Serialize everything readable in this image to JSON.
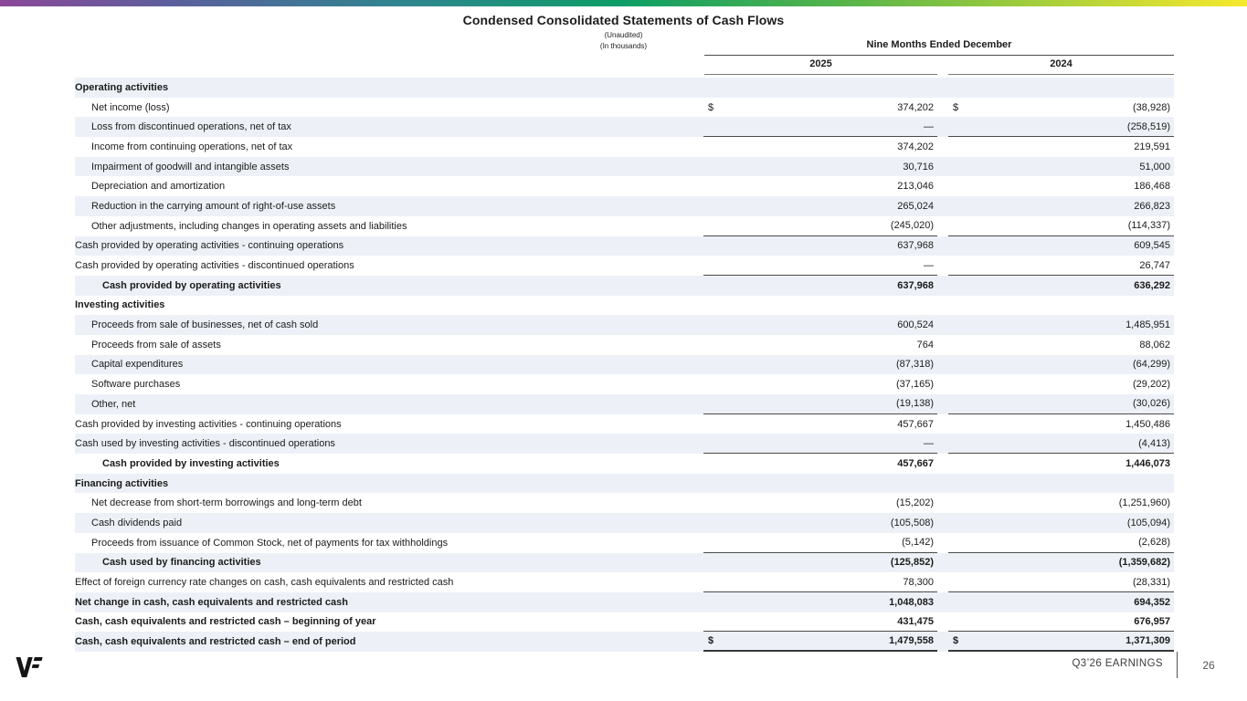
{
  "slide": {
    "title": "Condensed Consolidated Statements of Cash Flows",
    "subtitle_unaudited": "(Unaudited)",
    "subtitle_units": "(In thousands)",
    "period_header": "Nine Months Ended December",
    "columns": [
      "2025",
      "2024"
    ]
  },
  "footer": {
    "brand": "VF",
    "label": "Q3’26 EARNINGS",
    "page": "26"
  },
  "colors": {
    "row_shade": "#edf1f7",
    "rule_line": "#4b4b4b",
    "gradient_start": "#8c4799",
    "gradient_mid": "#0d9e66",
    "gradient_end": "#f7e92c"
  },
  "table": {
    "rows": [
      {
        "label": "Operating activities",
        "indent": 0,
        "bold": true,
        "dollar": false,
        "v2025": "",
        "v2024": "",
        "rule_below": false,
        "final": false
      },
      {
        "label": "Net income (loss)",
        "indent": 1,
        "bold": false,
        "dollar": true,
        "v2025": "374,202",
        "v2024": "(38,928)",
        "rule_below": false,
        "final": false
      },
      {
        "label": "Loss from discontinued operations, net of tax",
        "indent": 1,
        "bold": false,
        "dollar": false,
        "v2025": "—",
        "v2024": "(258,519)",
        "rule_below": true,
        "final": false
      },
      {
        "label": "Income from continuing operations, net of tax",
        "indent": 1,
        "bold": false,
        "dollar": false,
        "v2025": "374,202",
        "v2024": "219,591",
        "rule_below": false,
        "final": false
      },
      {
        "label": "Impairment of goodwill and intangible assets",
        "indent": 1,
        "bold": false,
        "dollar": false,
        "v2025": "30,716",
        "v2024": "51,000",
        "rule_below": false,
        "final": false
      },
      {
        "label": "Depreciation and amortization",
        "indent": 1,
        "bold": false,
        "dollar": false,
        "v2025": "213,046",
        "v2024": "186,468",
        "rule_below": false,
        "final": false
      },
      {
        "label": "Reduction in the carrying amount of right-of-use assets",
        "indent": 1,
        "bold": false,
        "dollar": false,
        "v2025": "265,024",
        "v2024": "266,823",
        "rule_below": false,
        "final": false
      },
      {
        "label": "Other adjustments, including changes in operating assets and liabilities",
        "indent": 1,
        "bold": false,
        "dollar": false,
        "v2025": "(245,020)",
        "v2024": "(114,337)",
        "rule_below": true,
        "final": false
      },
      {
        "label": "Cash provided by operating activities - continuing operations",
        "indent": 0,
        "bold": false,
        "dollar": false,
        "v2025": "637,968",
        "v2024": "609,545",
        "rule_below": false,
        "final": false
      },
      {
        "label": "Cash provided by operating activities - discontinued operations",
        "indent": 0,
        "bold": false,
        "dollar": false,
        "v2025": "—",
        "v2024": "26,747",
        "rule_below": true,
        "final": false
      },
      {
        "label": "Cash provided by operating activities",
        "indent": 2,
        "bold": true,
        "dollar": false,
        "v2025": "637,968",
        "v2024": "636,292",
        "rule_below": false,
        "final": false
      },
      {
        "label": "Investing activities",
        "indent": 0,
        "bold": true,
        "dollar": false,
        "v2025": "",
        "v2024": "",
        "rule_below": false,
        "final": false
      },
      {
        "label": "Proceeds from sale of businesses, net of cash sold",
        "indent": 1,
        "bold": false,
        "dollar": false,
        "v2025": "600,524",
        "v2024": "1,485,951",
        "rule_below": false,
        "final": false
      },
      {
        "label": "Proceeds from sale of assets",
        "indent": 1,
        "bold": false,
        "dollar": false,
        "v2025": "764",
        "v2024": "88,062",
        "rule_below": false,
        "final": false
      },
      {
        "label": "Capital expenditures",
        "indent": 1,
        "bold": false,
        "dollar": false,
        "v2025": "(87,318)",
        "v2024": "(64,299)",
        "rule_below": false,
        "final": false
      },
      {
        "label": "Software purchases",
        "indent": 1,
        "bold": false,
        "dollar": false,
        "v2025": "(37,165)",
        "v2024": "(29,202)",
        "rule_below": false,
        "final": false
      },
      {
        "label": "Other, net",
        "indent": 1,
        "bold": false,
        "dollar": false,
        "v2025": "(19,138)",
        "v2024": "(30,026)",
        "rule_below": true,
        "final": false
      },
      {
        "label": "Cash provided by investing activities - continuing operations",
        "indent": 0,
        "bold": false,
        "dollar": false,
        "v2025": "457,667",
        "v2024": "1,450,486",
        "rule_below": false,
        "final": false
      },
      {
        "label": "Cash used by investing activities - discontinued operations",
        "indent": 0,
        "bold": false,
        "dollar": false,
        "v2025": "—",
        "v2024": "(4,413)",
        "rule_below": true,
        "final": false
      },
      {
        "label": "Cash provided by investing activities",
        "indent": 2,
        "bold": true,
        "dollar": false,
        "v2025": "457,667",
        "v2024": "1,446,073",
        "rule_below": false,
        "final": false
      },
      {
        "label": "Financing activities",
        "indent": 0,
        "bold": true,
        "dollar": false,
        "v2025": "",
        "v2024": "",
        "rule_below": false,
        "final": false
      },
      {
        "label": "Net decrease from short-term borrowings and long-term debt",
        "indent": 1,
        "bold": false,
        "dollar": false,
        "v2025": "(15,202)",
        "v2024": "(1,251,960)",
        "rule_below": false,
        "final": false
      },
      {
        "label": "Cash dividends paid",
        "indent": 1,
        "bold": false,
        "dollar": false,
        "v2025": "(105,508)",
        "v2024": "(105,094)",
        "rule_below": false,
        "final": false
      },
      {
        "label": "Proceeds from issuance of Common Stock, net of payments for tax withholdings",
        "indent": 1,
        "bold": false,
        "dollar": false,
        "v2025": "(5,142)",
        "v2024": "(2,628)",
        "rule_below": true,
        "final": false
      },
      {
        "label": "Cash used by financing activities",
        "indent": 2,
        "bold": true,
        "dollar": false,
        "v2025": "(125,852)",
        "v2024": "(1,359,682)",
        "rule_below": false,
        "final": false
      },
      {
        "label": "Effect of foreign currency rate changes on cash, cash equivalents and restricted cash",
        "indent": 0,
        "bold": false,
        "dollar": false,
        "v2025": "78,300",
        "v2024": "(28,331)",
        "rule_below": true,
        "final": false
      },
      {
        "label": "Net change in cash, cash equivalents and restricted cash",
        "indent": 0,
        "bold": true,
        "dollar": false,
        "v2025": "1,048,083",
        "v2024": "694,352",
        "rule_below": false,
        "final": false
      },
      {
        "label": "Cash, cash equivalents and restricted cash – beginning of year",
        "indent": 0,
        "bold": true,
        "dollar": false,
        "v2025": "431,475",
        "v2024": "676,957",
        "rule_below": true,
        "final": false
      },
      {
        "label": "Cash, cash equivalents and restricted cash – end of period",
        "indent": 0,
        "bold": true,
        "dollar": true,
        "v2025": "1,479,558",
        "v2024": "1,371,309",
        "rule_below": false,
        "final": true
      }
    ]
  }
}
